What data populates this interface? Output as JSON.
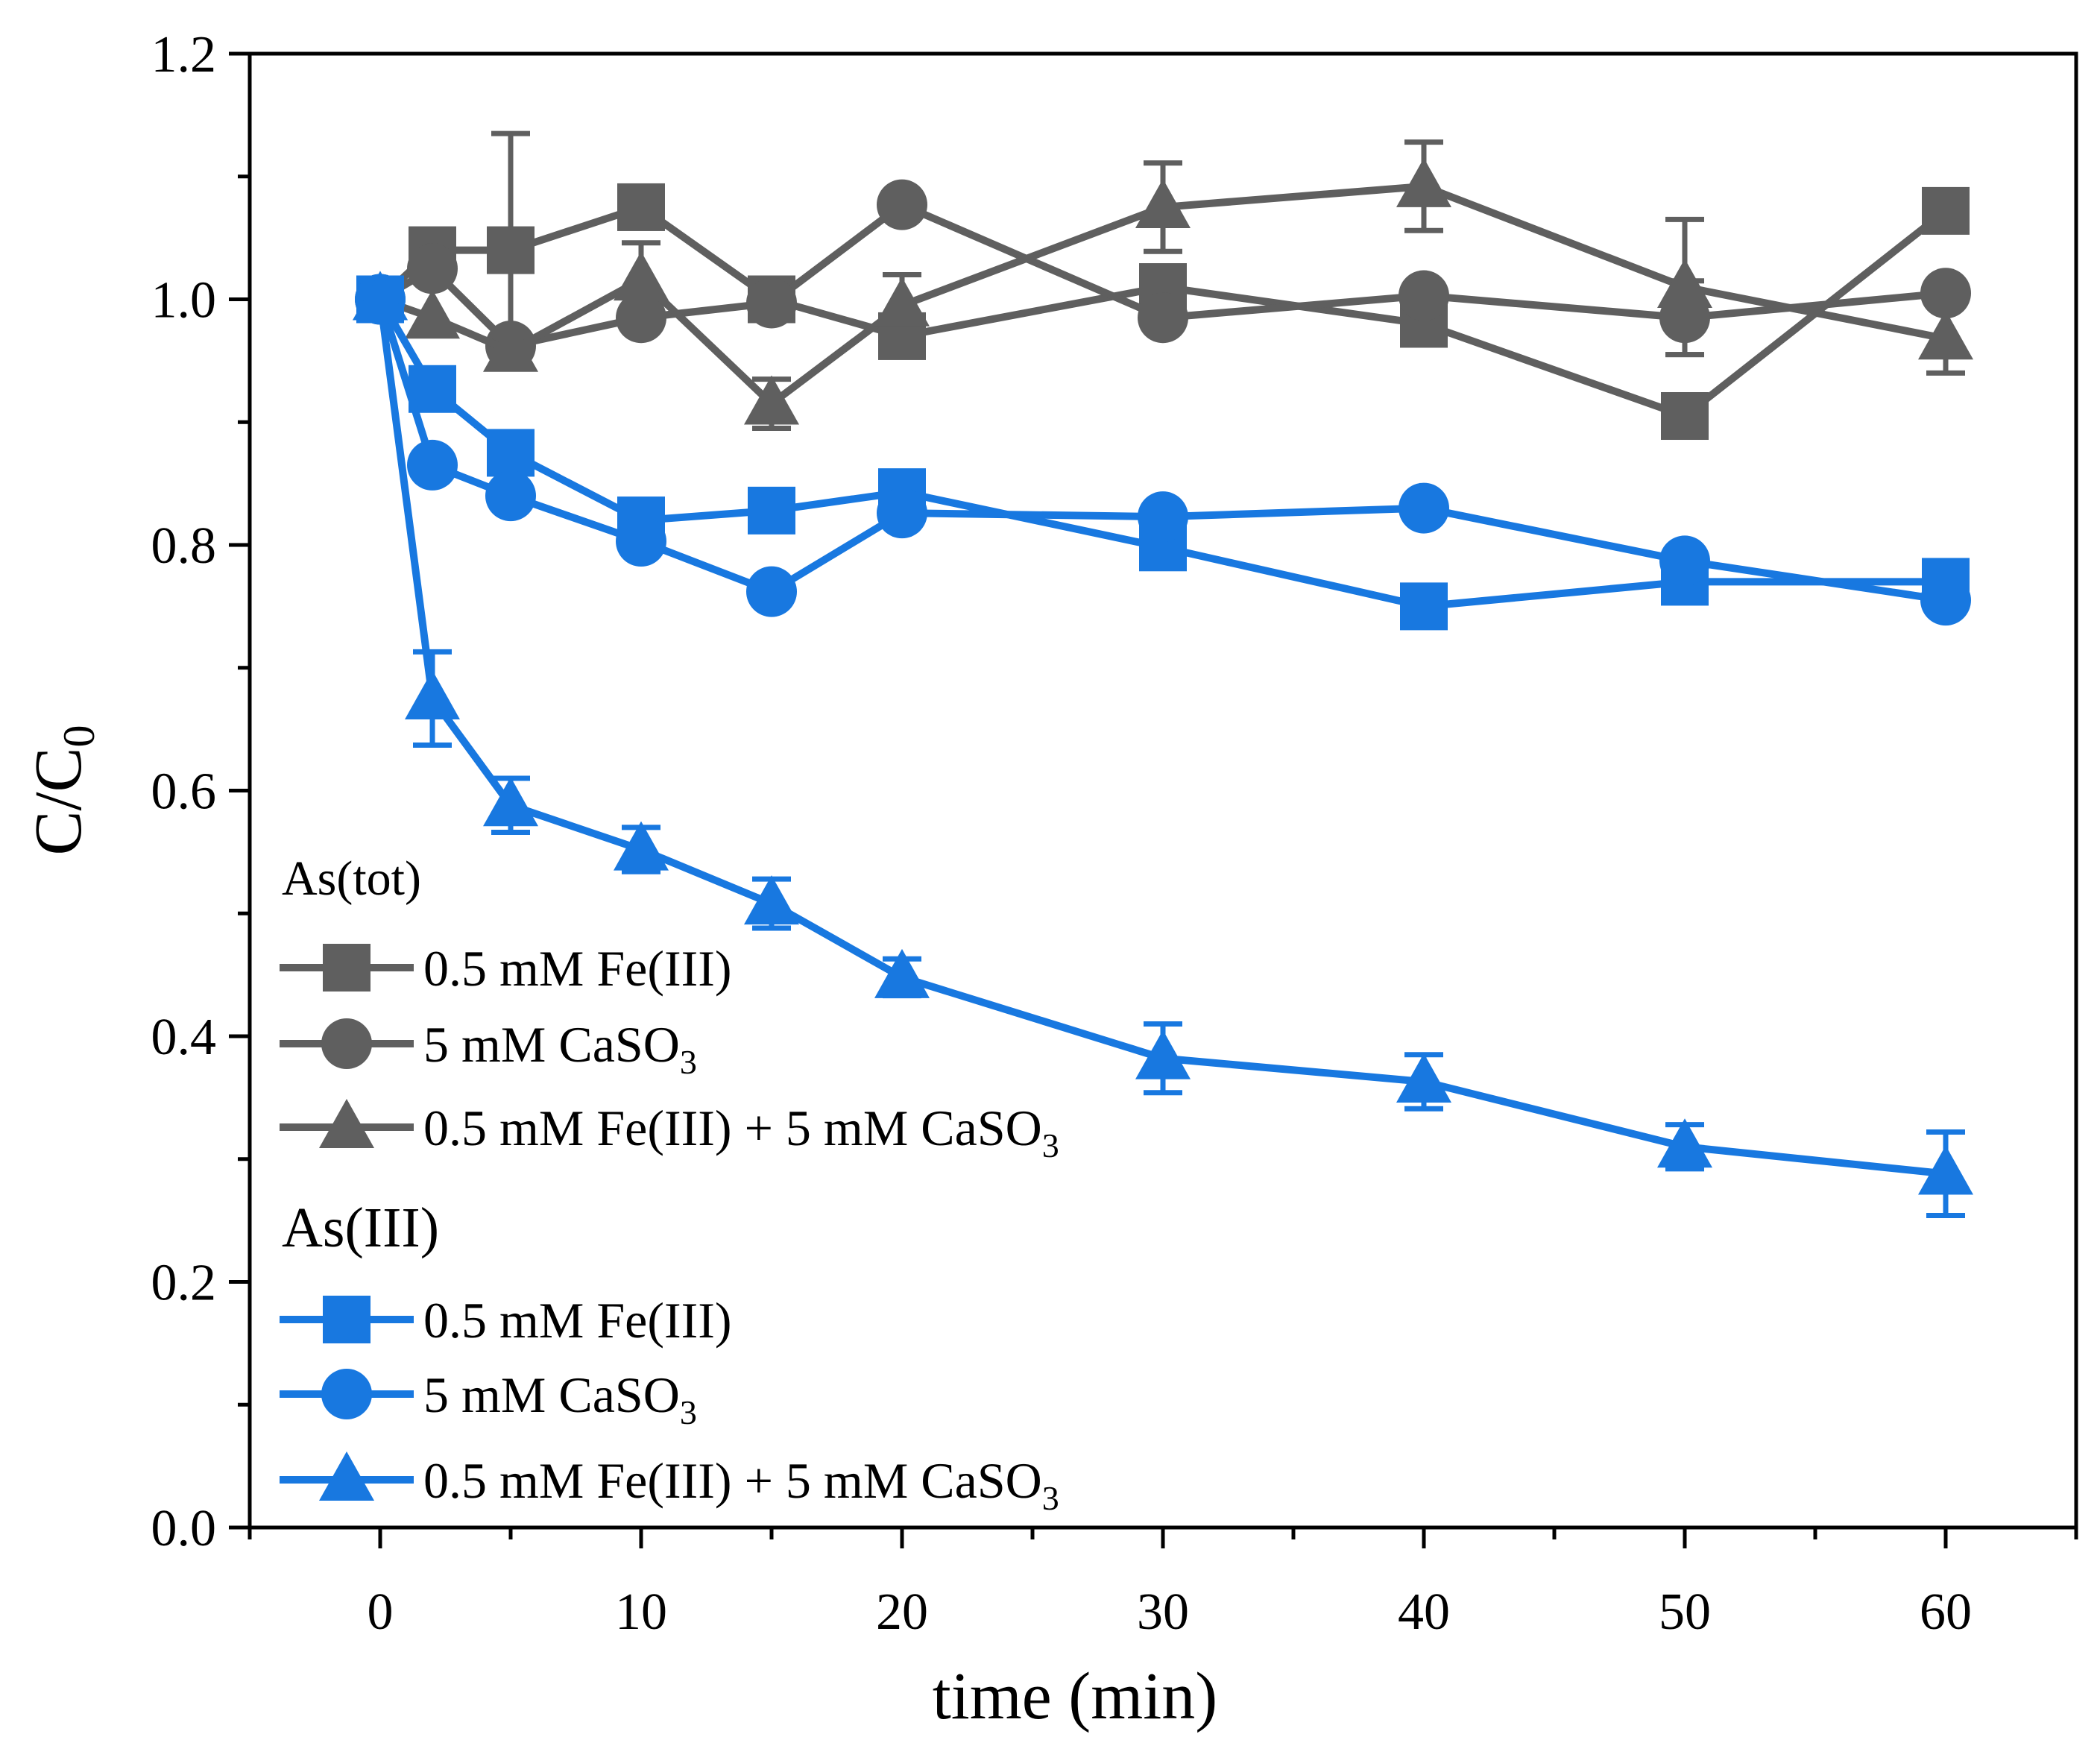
{
  "chart_data": {
    "type": "line",
    "xlabel": "time (min)",
    "ylabel": {
      "main": "C/C",
      "sub": "0"
    },
    "xlim": [
      -5,
      65
    ],
    "ylim": [
      0.0,
      1.2
    ],
    "xticks": [
      0,
      10,
      20,
      30,
      40,
      50,
      60
    ],
    "xtick_labels": [
      "0",
      "10",
      "20",
      "30",
      "40",
      "50",
      "60"
    ],
    "yticks": [
      0.0,
      0.2,
      0.4,
      0.6,
      0.8,
      1.0,
      1.2
    ],
    "ytick_labels": [
      "0.0",
      "0.2",
      "0.4",
      "0.6",
      "0.8",
      "1.0",
      "1.2"
    ],
    "grid": false,
    "legend_position": "bottom-left",
    "legend_groups": [
      {
        "title": "As(tot)",
        "series": [
          0,
          1,
          2
        ]
      },
      {
        "title": "As(III)",
        "series": [
          3,
          4,
          5
        ]
      }
    ],
    "series": [
      {
        "name": "0.5 mM Fe(III)",
        "label_main": "0.5 mM Fe(III)",
        "label_sub": "",
        "group": "As(tot)",
        "color": "#5f5f5f",
        "marker": "square",
        "x": [
          0,
          2,
          5,
          10,
          15,
          20,
          30,
          40,
          50,
          60
        ],
        "y": [
          1.0,
          1.04,
          1.04,
          1.075,
          1.0,
          0.97,
          1.01,
          0.98,
          0.905,
          1.072
        ],
        "err": [
          0,
          0,
          0.095,
          0,
          0,
          0,
          0,
          0,
          0,
          0
        ]
      },
      {
        "name": "5 mM CaSO3",
        "label_main": "5 mM CaSO",
        "label_sub": "3",
        "group": "As(tot)",
        "color": "#5f5f5f",
        "marker": "circle",
        "x": [
          0,
          2,
          5,
          10,
          15,
          20,
          30,
          40,
          50,
          60
        ],
        "y": [
          1.0,
          1.025,
          0.962,
          0.985,
          0.997,
          1.077,
          0.985,
          1.003,
          0.985,
          1.005
        ],
        "err": [
          0,
          0,
          0,
          0,
          0,
          0,
          0,
          0,
          0.03,
          0
        ]
      },
      {
        "name": "0.5 mM Fe(III) + 5 mM CaSO3",
        "label_main": "0.5 mM Fe(III) + 5 mM CaSO",
        "label_sub": "3",
        "group": "As(tot)",
        "color": "#5f5f5f",
        "marker": "triangle",
        "x": [
          0,
          2,
          5,
          10,
          15,
          20,
          30,
          40,
          50,
          60
        ],
        "y": [
          1.0,
          0.985,
          0.958,
          1.016,
          0.915,
          0.995,
          1.075,
          1.092,
          1.01,
          0.968
        ],
        "err": [
          0,
          0,
          0,
          0.03,
          0.02,
          0.025,
          0.036,
          0.036,
          0.055,
          0.028
        ]
      },
      {
        "name": "0.5 mM Fe(III)",
        "label_main": " 0.5 mM Fe(III)",
        "label_sub": "",
        "group": "As(III)",
        "color": "#1878e0",
        "marker": "square",
        "x": [
          0,
          2,
          5,
          10,
          15,
          20,
          30,
          40,
          50,
          60
        ],
        "y": [
          1.0,
          0.927,
          0.875,
          0.82,
          0.828,
          0.843,
          0.798,
          0.75,
          0.77,
          0.77
        ],
        "err": [
          0,
          0,
          0,
          0,
          0,
          0,
          0,
          0,
          0,
          0
        ]
      },
      {
        "name": "5 mM CaSO3",
        "label_main": " 5 mM CaSO",
        "label_sub": "3",
        "group": "As(III)",
        "color": "#1878e0",
        "marker": "circle",
        "x": [
          0,
          2,
          5,
          10,
          15,
          20,
          30,
          40,
          50,
          60
        ],
        "y": [
          1.0,
          0.865,
          0.84,
          0.803,
          0.762,
          0.826,
          0.823,
          0.83,
          0.787,
          0.755
        ],
        "err": [
          0,
          0,
          0,
          0,
          0,
          0,
          0,
          0,
          0,
          0
        ]
      },
      {
        "name": "0.5 mM Fe(III) + 5 mM CaSO3",
        "label_main": "0.5 mM Fe(III) + 5 mM CaSO",
        "label_sub": "3",
        "group": "As(III)",
        "color": "#1878e0",
        "marker": "triangle",
        "x": [
          0,
          2,
          5,
          10,
          15,
          20,
          30,
          40,
          50,
          60
        ],
        "y": [
          1.0,
          0.675,
          0.588,
          0.552,
          0.508,
          0.448,
          0.382,
          0.363,
          0.31,
          0.288
        ],
        "err": [
          0,
          0.038,
          0.022,
          0.018,
          0.02,
          0.015,
          0.028,
          0.022,
          0.018,
          0.034
        ]
      }
    ]
  }
}
